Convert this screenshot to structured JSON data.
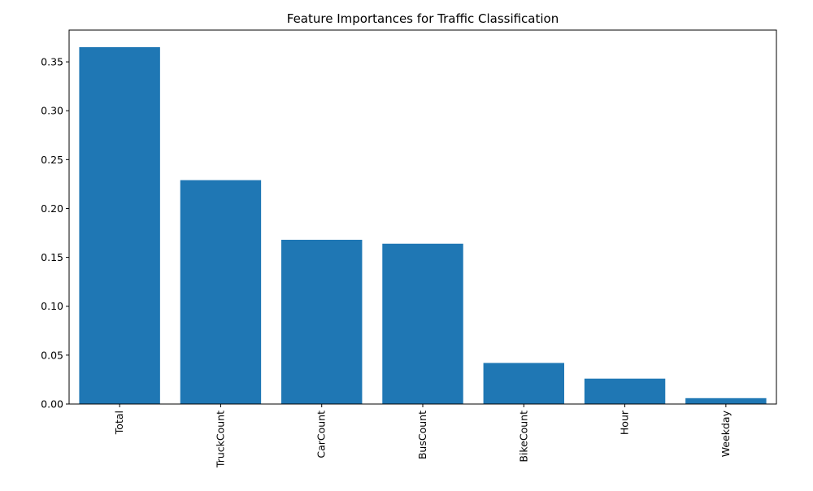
{
  "chart_data": {
    "type": "bar",
    "title": "Feature Importances for Traffic Classification",
    "xlabel": "",
    "ylabel": "",
    "categories": [
      "Total",
      "TruckCount",
      "CarCount",
      "BusCount",
      "BikeCount",
      "Hour",
      "Weekday"
    ],
    "values": [
      0.365,
      0.229,
      0.168,
      0.164,
      0.042,
      0.026,
      0.006
    ],
    "ylim": [
      0,
      0.3825
    ],
    "yticks": [
      0.0,
      0.05,
      0.1,
      0.15,
      0.2,
      0.25,
      0.3,
      0.35
    ],
    "ytick_labels": [
      "0.00",
      "0.05",
      "0.10",
      "0.15",
      "0.20",
      "0.25",
      "0.30",
      "0.35"
    ],
    "xtick_rotation": "vertical",
    "grid": false,
    "bar_color": "#1f77b4"
  }
}
